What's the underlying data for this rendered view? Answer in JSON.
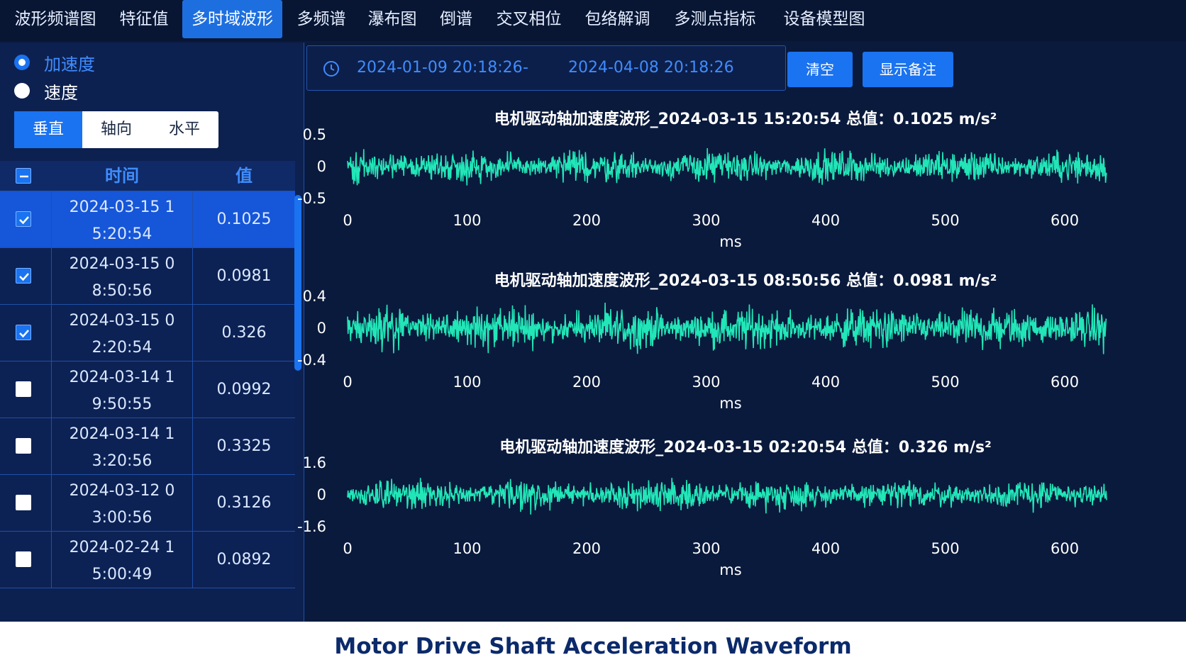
{
  "nav": {
    "tabs": [
      "波形频谱图",
      "特征值",
      "多时域波形",
      "多频谱",
      "瀑布图",
      "倒谱",
      "交叉相位",
      "包络解调",
      "多测点指标",
      "设备模型图"
    ],
    "active_index": 2
  },
  "left": {
    "radios": [
      {
        "label": "加速度",
        "checked": true
      },
      {
        "label": "速度",
        "checked": false
      }
    ],
    "directions": [
      "垂直",
      "轴向",
      "水平"
    ],
    "active_direction": 0,
    "table": {
      "headers": {
        "time": "时间",
        "value": "值"
      },
      "rows": [
        {
          "time_line1": "2024-03-15 1",
          "time_line2": "5:20:54",
          "value": "0.1025",
          "checked": true
        },
        {
          "time_line1": "2024-03-15 0",
          "time_line2": "8:50:56",
          "value": "0.0981",
          "checked": true
        },
        {
          "time_line1": "2024-03-15 0",
          "time_line2": "2:20:54",
          "value": "0.326",
          "checked": true
        },
        {
          "time_line1": "2024-03-14 1",
          "time_line2": "9:50:55",
          "value": "0.0992",
          "checked": false
        },
        {
          "time_line1": "2024-03-14 1",
          "time_line2": "3:20:56",
          "value": "0.3325",
          "checked": false
        },
        {
          "time_line1": "2024-03-12 0",
          "time_line2": "3:00:56",
          "value": "0.3126",
          "checked": false
        },
        {
          "time_line1": "2024-02-24 1",
          "time_line2": "5:00:49",
          "value": "0.0892",
          "checked": false
        }
      ]
    }
  },
  "right": {
    "date_start": "2024-01-09 20:18:26",
    "date_separator": "-",
    "date_end": "2024-04-08 20:18:26",
    "clear_label": "清空",
    "notes_label": "显示备注"
  },
  "colors": {
    "accent": "#1a73f0",
    "waveform": "#22e6b8",
    "background": "#0a1a3c"
  },
  "chart_data": [
    {
      "type": "line",
      "title": "电机驱动轴加速度波形_2024-03-15 15:20:54 总值：0.1025 m/s²",
      "xlabel": "ms",
      "x_ticks": [
        0,
        100,
        200,
        300,
        400,
        500,
        600
      ],
      "y_ticks": [
        "0.5",
        "0",
        "-0.5"
      ],
      "xlim": [
        0,
        635
      ],
      "ylim": [
        -0.6,
        0.6
      ],
      "amplitude": 0.25,
      "seed": 11
    },
    {
      "type": "line",
      "title": "电机驱动轴加速度波形_2024-03-15 08:50:56 总值：0.0981 m/s²",
      "xlabel": "ms",
      "x_ticks": [
        0,
        100,
        200,
        300,
        400,
        500,
        600
      ],
      "y_ticks": [
        "0.4",
        "0",
        "-0.4"
      ],
      "xlim": [
        0,
        635
      ],
      "ylim": [
        -0.45,
        0.45
      ],
      "amplitude": 0.24,
      "seed": 29
    },
    {
      "type": "line",
      "title": "电机驱动轴加速度波形_2024-03-15 02:20:54 总值：0.326 m/s²",
      "xlabel": "ms",
      "x_ticks": [
        0,
        100,
        200,
        300,
        400,
        500,
        600
      ],
      "y_ticks": [
        "1.6",
        "0",
        "-1.6"
      ],
      "xlim": [
        0,
        635
      ],
      "ylim": [
        -1.8,
        1.8
      ],
      "amplitude": 0.7,
      "seed": 47
    }
  ],
  "caption": "Motor Drive Shaft Acceleration Waveform"
}
